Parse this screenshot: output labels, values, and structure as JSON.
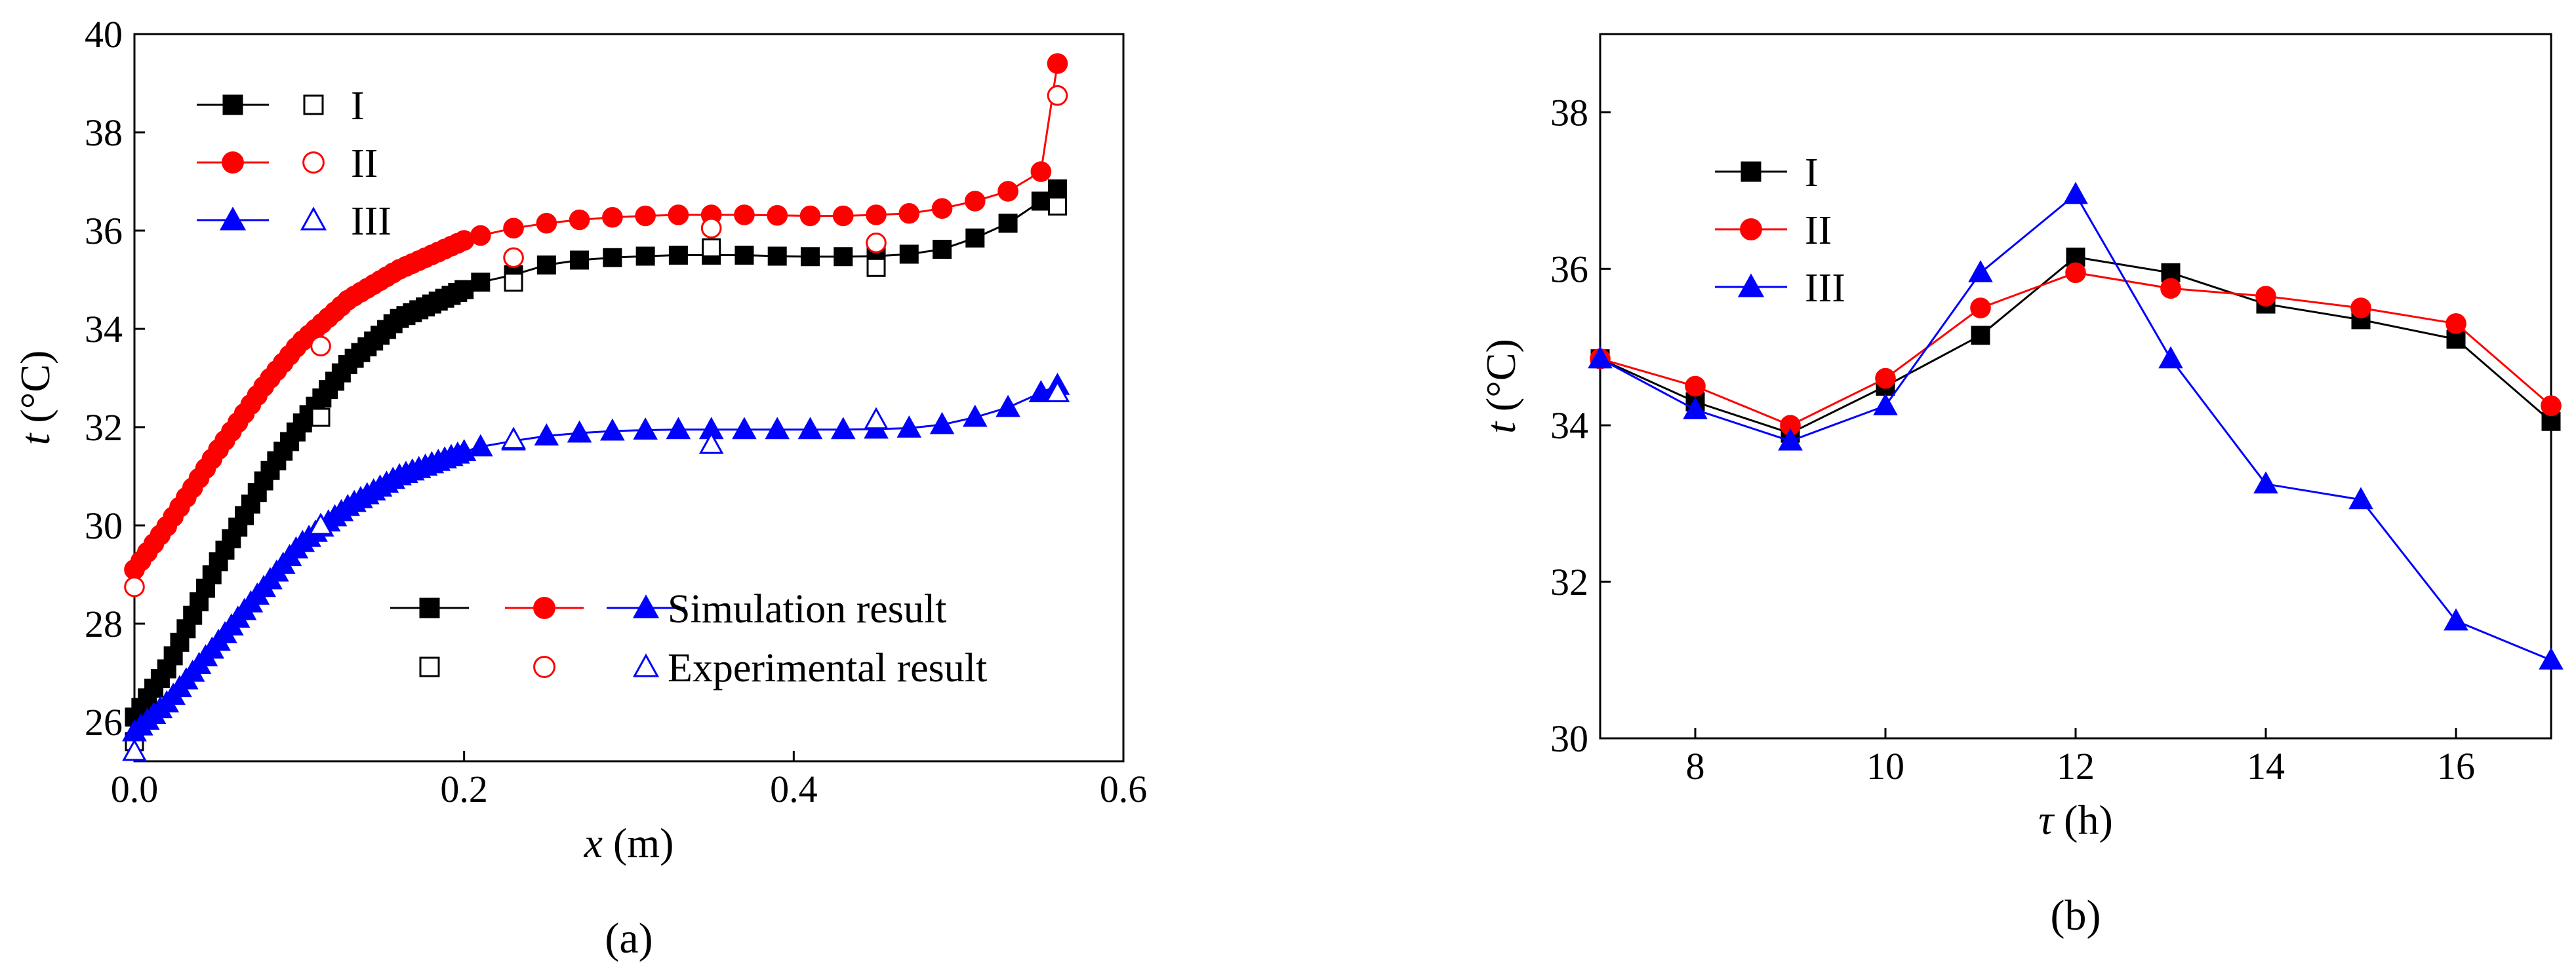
{
  "chart_data": [
    {
      "type": "line",
      "panel": "a",
      "caption": "(a)",
      "xlabel_var": "x",
      "xlabel_unit": " (m)",
      "ylabel_var": "t",
      "ylabel_unit": " (°C)",
      "xlim": [
        0,
        0.6
      ],
      "ylim": [
        25.2,
        40
      ],
      "xticks": [
        "0.0",
        "0.2",
        "0.4",
        "0.6"
      ],
      "yticks": [
        "26",
        "28",
        "30",
        "32",
        "34",
        "36",
        "38",
        "40"
      ],
      "legend_labels": {
        "simulation": "Simulation result",
        "experimental": "Experimental result"
      },
      "series": [
        {
          "name": "I",
          "color": "#000000",
          "marker": "square",
          "simulation_curve": [
            [
              0.0,
              26.1
            ],
            [
              0.02,
              27.1
            ],
            [
              0.05,
              29.2
            ],
            [
              0.08,
              31.0
            ],
            [
              0.1,
              32.0
            ],
            [
              0.13,
              33.3
            ],
            [
              0.16,
              34.2
            ],
            [
              0.2,
              34.8
            ]
          ],
          "simulation_points": [
            [
              0.21,
              34.95
            ],
            [
              0.23,
              35.1
            ],
            [
              0.25,
              35.3
            ],
            [
              0.27,
              35.4
            ],
            [
              0.29,
              35.45
            ],
            [
              0.31,
              35.48
            ],
            [
              0.33,
              35.5
            ],
            [
              0.35,
              35.5
            ],
            [
              0.37,
              35.5
            ],
            [
              0.39,
              35.48
            ],
            [
              0.41,
              35.47
            ],
            [
              0.43,
              35.47
            ],
            [
              0.45,
              35.48
            ],
            [
              0.47,
              35.52
            ],
            [
              0.49,
              35.62
            ],
            [
              0.51,
              35.85
            ],
            [
              0.53,
              36.15
            ],
            [
              0.55,
              36.6
            ],
            [
              0.56,
              36.85
            ]
          ],
          "experimental": [
            [
              0.0,
              25.6
            ],
            [
              0.113,
              32.2
            ],
            [
              0.23,
              34.95
            ],
            [
              0.35,
              35.65
            ],
            [
              0.45,
              35.25
            ],
            [
              0.56,
              36.5
            ]
          ]
        },
        {
          "name": "II",
          "color": "#ff0000",
          "marker": "circle",
          "simulation_curve": [
            [
              0.0,
              29.1
            ],
            [
              0.02,
              30.0
            ],
            [
              0.05,
              31.5
            ],
            [
              0.08,
              32.9
            ],
            [
              0.1,
              33.7
            ],
            [
              0.13,
              34.6
            ],
            [
              0.16,
              35.2
            ],
            [
              0.2,
              35.8
            ]
          ],
          "simulation_points": [
            [
              0.21,
              35.9
            ],
            [
              0.23,
              36.05
            ],
            [
              0.25,
              36.15
            ],
            [
              0.27,
              36.22
            ],
            [
              0.29,
              36.27
            ],
            [
              0.31,
              36.3
            ],
            [
              0.33,
              36.32
            ],
            [
              0.35,
              36.32
            ],
            [
              0.37,
              36.32
            ],
            [
              0.39,
              36.31
            ],
            [
              0.41,
              36.3
            ],
            [
              0.43,
              36.3
            ],
            [
              0.45,
              36.32
            ],
            [
              0.47,
              36.35
            ],
            [
              0.49,
              36.45
            ],
            [
              0.51,
              36.6
            ],
            [
              0.53,
              36.8
            ],
            [
              0.55,
              37.2
            ],
            [
              0.56,
              39.4
            ]
          ],
          "experimental": [
            [
              0.0,
              28.75
            ],
            [
              0.113,
              33.65
            ],
            [
              0.23,
              35.45
            ],
            [
              0.35,
              36.05
            ],
            [
              0.45,
              35.75
            ],
            [
              0.56,
              38.75
            ]
          ]
        },
        {
          "name": "III",
          "color": "#0000ff",
          "marker": "triangle",
          "simulation_curve": [
            [
              0.0,
              25.8
            ],
            [
              0.02,
              26.4
            ],
            [
              0.05,
              27.6
            ],
            [
              0.08,
              28.8
            ],
            [
              0.1,
              29.6
            ],
            [
              0.13,
              30.4
            ],
            [
              0.16,
              31.0
            ],
            [
              0.2,
              31.5
            ]
          ],
          "simulation_points": [
            [
              0.21,
              31.6
            ],
            [
              0.23,
              31.72
            ],
            [
              0.25,
              31.82
            ],
            [
              0.27,
              31.88
            ],
            [
              0.29,
              31.92
            ],
            [
              0.31,
              31.94
            ],
            [
              0.33,
              31.95
            ],
            [
              0.35,
              31.95
            ],
            [
              0.37,
              31.95
            ],
            [
              0.39,
              31.95
            ],
            [
              0.41,
              31.95
            ],
            [
              0.43,
              31.95
            ],
            [
              0.45,
              31.96
            ],
            [
              0.47,
              31.98
            ],
            [
              0.49,
              32.05
            ],
            [
              0.51,
              32.2
            ],
            [
              0.53,
              32.4
            ],
            [
              0.55,
              32.7
            ],
            [
              0.56,
              32.85
            ]
          ],
          "experimental": [
            [
              0.0,
              25.4
            ],
            [
              0.113,
              30.0
            ],
            [
              0.23,
              31.75
            ],
            [
              0.35,
              31.65
            ],
            [
              0.45,
              32.15
            ],
            [
              0.56,
              32.7
            ]
          ]
        }
      ]
    },
    {
      "type": "line",
      "panel": "b",
      "caption": "(b)",
      "xlabel_var": "τ",
      "xlabel_unit": " (h)",
      "ylabel_var": "t",
      "ylabel_unit": " (°C)",
      "xlim": [
        7,
        17
      ],
      "ylim": [
        30,
        39
      ],
      "xticks": [
        "8",
        "10",
        "12",
        "14",
        "16"
      ],
      "yticks": [
        "30",
        "32",
        "34",
        "36",
        "38"
      ],
      "x": [
        7,
        8,
        9,
        10,
        11,
        12,
        13,
        14,
        15,
        16,
        17
      ],
      "series": [
        {
          "name": "I",
          "color": "#000000",
          "marker": "square",
          "values": [
            34.85,
            34.3,
            33.9,
            34.5,
            35.15,
            36.15,
            35.95,
            35.55,
            35.35,
            35.1,
            34.05
          ]
        },
        {
          "name": "II",
          "color": "#ff0000",
          "marker": "circle",
          "values": [
            34.85,
            34.5,
            34.0,
            34.6,
            35.5,
            35.95,
            35.75,
            35.65,
            35.5,
            35.3,
            34.25
          ]
        },
        {
          "name": "III",
          "color": "#0000ff",
          "marker": "triangle",
          "values": [
            34.85,
            34.2,
            33.8,
            34.25,
            35.95,
            36.95,
            34.85,
            33.25,
            33.05,
            31.5,
            31.0
          ]
        }
      ]
    }
  ]
}
